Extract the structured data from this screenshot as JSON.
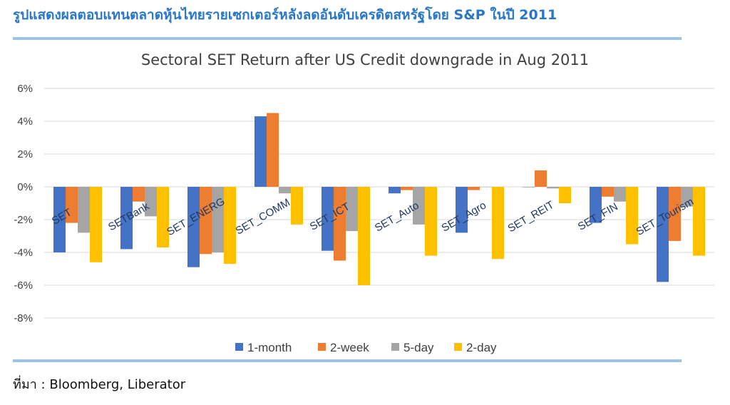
{
  "page": {
    "heading": "รูปแสดงผลตอบแทนตลาดหุ้นไทยรายเซกเตอร์หลังลดอันดับเครดิตสหรัฐโดย S&P ในปี 2011",
    "source": "ที่มา : Bloomberg, Liberator"
  },
  "chart_data": {
    "type": "bar",
    "title": "Sectoral SET Return after US Credit downgrade in Aug 2011",
    "categories": [
      "SET",
      "SETBank",
      "SET_ENERG",
      "SET_COMM",
      "SET_ICT",
      "SET_Auto",
      "SET_Agro",
      "SET_REIT",
      "SET_FIN",
      "SET_Tourism"
    ],
    "series": [
      {
        "name": "1-month",
        "color": "#4472c4",
        "values": [
          -4.0,
          -3.8,
          -4.9,
          4.3,
          -3.9,
          -0.4,
          -2.8,
          0.0,
          -2.2,
          -5.8
        ]
      },
      {
        "name": "2-week",
        "color": "#ed7d31",
        "values": [
          -2.2,
          -0.9,
          -4.1,
          4.5,
          -4.5,
          -0.2,
          -0.2,
          1.0,
          -0.6,
          -3.3
        ]
      },
      {
        "name": "5-day",
        "color": "#a5a5a5",
        "values": [
          -2.8,
          -1.8,
          -4.0,
          -0.4,
          -2.7,
          -2.3,
          0.0,
          -0.1,
          -0.9,
          -1.2
        ]
      },
      {
        "name": "2-day",
        "color": "#ffc000",
        "values": [
          -4.6,
          -3.7,
          -4.7,
          -2.3,
          -6.0,
          -4.2,
          -4.4,
          -1.0,
          -3.5,
          -4.2
        ]
      }
    ],
    "yticks": [
      "6%",
      "4%",
      "2%",
      "0%",
      "-2%",
      "-4%",
      "-6%",
      "-8%"
    ],
    "ylim": [
      -8,
      6
    ],
    "ytick_step": 2,
    "grid": true,
    "legend": "bottom"
  }
}
